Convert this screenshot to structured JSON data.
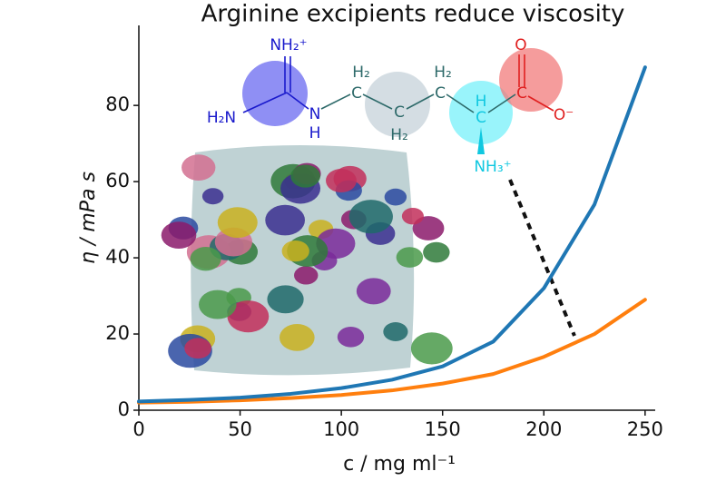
{
  "chart_data": {
    "type": "line",
    "title": "Arginine excipients reduce viscosity",
    "x_label": "c / mg ml⁻¹",
    "y_label": "η / mPa s",
    "x": [
      0,
      25,
      50,
      75,
      100,
      125,
      150,
      175,
      200,
      225,
      250
    ],
    "series": [
      {
        "color": "#1f77b4",
        "values": [
          2.3,
          2.7,
          3.3,
          4.3,
          5.8,
          8,
          11.5,
          18,
          32,
          54,
          90
        ]
      },
      {
        "color": "#ff7f0e",
        "values": [
          2,
          2.2,
          2.6,
          3.2,
          4,
          5.2,
          7,
          9.5,
          14,
          20,
          29
        ]
      }
    ],
    "xlim": [
      0,
      255
    ],
    "ylim": [
      0,
      101
    ],
    "xticks": [
      0,
      50,
      100,
      150,
      200,
      250
    ],
    "yticks": [
      0,
      20,
      40,
      60,
      80
    ],
    "grid": false,
    "annotations": [
      "NH₂⁺",
      "H₂N",
      "N",
      "H",
      "H₂",
      "C",
      "C",
      "H₂",
      "H₂",
      "C",
      "H",
      "C",
      "O",
      "C",
      "O⁻",
      "NH₃⁺"
    ]
  }
}
